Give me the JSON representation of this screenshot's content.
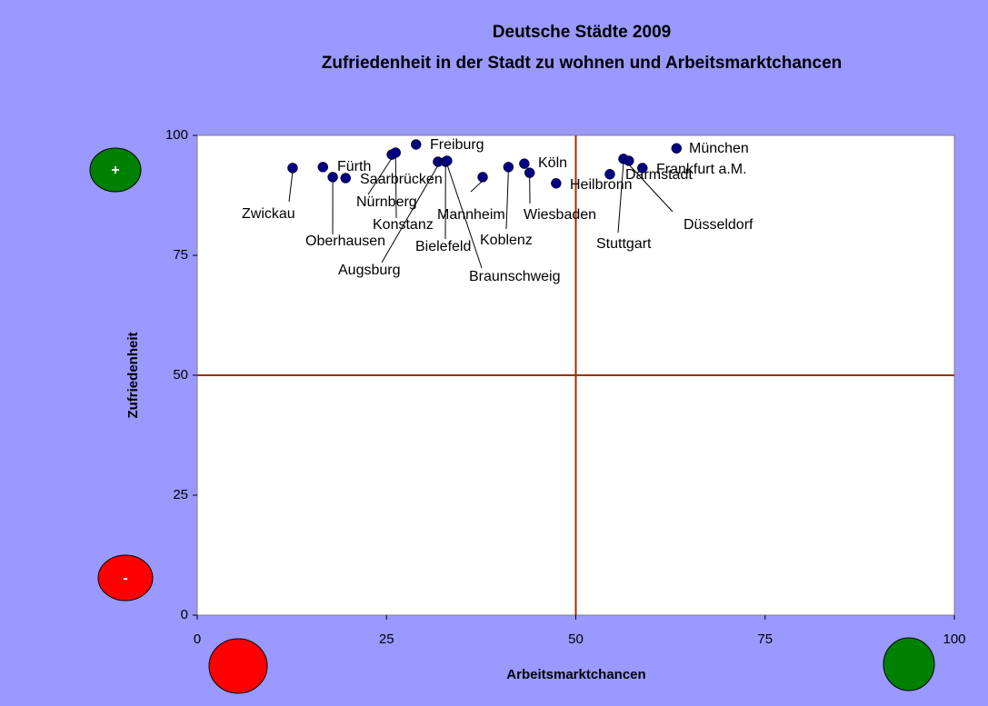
{
  "chart_data": {
    "type": "scatter",
    "title": "Deutsche Städte 2009",
    "subtitle": "Zufriedenheit in der Stadt zu wohnen und Arbeitsmarktchancen",
    "x_label": "Arbeitsmarktchancen",
    "y_label": "Zufriedenheit",
    "color": "#000080",
    "point_labels": [
      "Zwickau",
      "Fürth",
      "Oberhausen",
      "Saarbrücken",
      "Nürnberg",
      "Konstanz",
      "Freiburg",
      "Augsburg",
      "Bielefeld",
      "Braunschweig",
      "Mannheim",
      "Koblenz",
      "Köln",
      "Wiesbaden",
      "Heilbronn",
      "Darmstadt",
      "Stuttgart",
      "Düsseldorf",
      "Frankfurt a.M.",
      "München"
    ],
    "x": [
      12.6,
      16.6,
      17.9,
      19.6,
      25.7,
      26.2,
      28.9,
      31.8,
      32.8,
      33.0,
      37.7,
      41.1,
      43.2,
      43.9,
      47.4,
      54.5,
      56.3,
      57.0,
      58.8,
      63.3
    ],
    "values": [
      93.2,
      93.4,
      91.3,
      91.1,
      96.0,
      96.4,
      98.1,
      94.5,
      94.5,
      94.7,
      91.3,
      93.4,
      94.1,
      92.2,
      90.0,
      91.9,
      95.1,
      94.7,
      93.2,
      97.3
    ],
    "xlim": [
      0,
      100
    ],
    "ylim": [
      0,
      100
    ],
    "xticks": [
      0,
      25,
      50,
      75,
      100
    ],
    "yticks": [
      0,
      25,
      50,
      75,
      100
    ],
    "reference_lines": {
      "x": 50,
      "y": 50,
      "color": "#993300"
    },
    "annotations": [
      "+",
      "-"
    ]
  }
}
